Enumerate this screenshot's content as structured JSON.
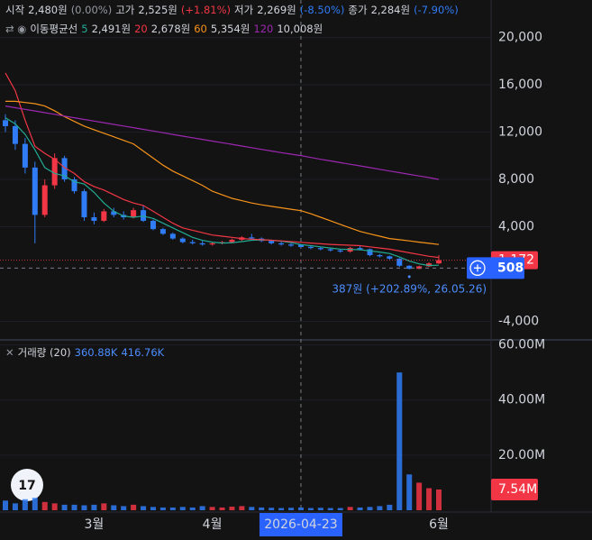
{
  "chart_data": [
    {
      "type": "candlestick",
      "categories": [
        null,
        null,
        null,
        null,
        null,
        null,
        null,
        null,
        null,
        "3월",
        null,
        null,
        null,
        null,
        null,
        null,
        null,
        null,
        null,
        null,
        null,
        "4월",
        null,
        null,
        null,
        null,
        null,
        null,
        null,
        null,
        "2026-04-23",
        null,
        null,
        null,
        null,
        null,
        null,
        null,
        null,
        null,
        null,
        null,
        null,
        null,
        "6월"
      ],
      "open": [
        13000,
        12500,
        11000,
        9000,
        5000,
        7500,
        9800,
        8000,
        7000,
        4800,
        4500,
        5300,
        5000,
        4800,
        5400,
        4500,
        3800,
        3400,
        3000,
        2700,
        2600,
        2500,
        2600,
        2700,
        2900,
        3100,
        3000,
        2800,
        2600,
        2500,
        2480,
        2300,
        2200,
        2100,
        2000,
        1900,
        2200,
        2100,
        1600,
        1500,
        1300,
        700,
        450,
        650,
        900
      ],
      "high": [
        13500,
        13000,
        11500,
        9500,
        8000,
        10200,
        10000,
        8200,
        7200,
        5200,
        5500,
        5600,
        5300,
        5600,
        5800,
        4600,
        3900,
        3500,
        3100,
        2900,
        2800,
        2700,
        2800,
        3000,
        3200,
        3400,
        3100,
        2900,
        2800,
        2700,
        2525,
        2400,
        2300,
        2200,
        2100,
        2300,
        2400,
        2150,
        1700,
        1550,
        1350,
        750,
        700,
        1000,
        1600
      ],
      "low": [
        12000,
        10500,
        8500,
        2600,
        4800,
        7200,
        7800,
        6800,
        4500,
        4200,
        4400,
        4800,
        4600,
        4700,
        4400,
        3700,
        3300,
        2900,
        2600,
        2500,
        2400,
        2400,
        2500,
        2600,
        2800,
        2900,
        2700,
        2500,
        2400,
        2300,
        2269,
        2100,
        2000,
        1900,
        1800,
        1800,
        2000,
        1500,
        1400,
        1200,
        600,
        387,
        400,
        600,
        850
      ],
      "close": [
        12500,
        11000,
        9000,
        5000,
        7500,
        9800,
        8000,
        7000,
        4800,
        4500,
        5300,
        5000,
        4800,
        5400,
        4500,
        3800,
        3400,
        3000,
        2700,
        2600,
        2500,
        2600,
        2700,
        2900,
        3100,
        3000,
        2800,
        2600,
        2500,
        2400,
        2284,
        2200,
        2100,
        2000,
        1900,
        2200,
        2100,
        1600,
        1500,
        1300,
        700,
        450,
        650,
        900,
        1172
      ],
      "up_color": "#f23645",
      "down_color": "#2f7cf6",
      "series": [
        {
          "name": "5",
          "color": "#22ab94",
          "legend_value": "2,491원",
          "values": [
            13200,
            12700,
            11800,
            10500,
            9000,
            8500,
            8300,
            7800,
            7600,
            6900,
            6000,
            5300,
            4900,
            4800,
            4900,
            4700,
            4300,
            3900,
            3500,
            3100,
            2850,
            2700,
            2620,
            2640,
            2740,
            2860,
            2880,
            2860,
            2780,
            2660,
            2491,
            2400,
            2300,
            2200,
            2100,
            2080,
            2060,
            1960,
            1860,
            1740,
            1440,
            1100,
            860,
            720,
            750
          ]
        },
        {
          "name": "20",
          "color": "#f23645",
          "legend_value": "2,678원",
          "values": [
            17000,
            15500,
            13000,
            10800,
            10200,
            9700,
            9000,
            8500,
            7800,
            7400,
            7100,
            6700,
            6300,
            6000,
            5800,
            5300,
            4800,
            4300,
            3900,
            3700,
            3500,
            3300,
            3200,
            3100,
            3000,
            2950,
            2900,
            2860,
            2800,
            2740,
            2678,
            2620,
            2560,
            2510,
            2470,
            2440,
            2400,
            2300,
            2200,
            2100,
            1950,
            1800,
            1650,
            1500,
            1400
          ]
        },
        {
          "name": "60",
          "color": "#f7931a",
          "legend_value": "5,354원",
          "values": [
            14600,
            14600,
            14500,
            14400,
            14200,
            13800,
            13300,
            12900,
            12500,
            12200,
            11900,
            11600,
            11300,
            11000,
            10400,
            9800,
            9200,
            8700,
            8300,
            7900,
            7500,
            7000,
            6700,
            6400,
            6200,
            6000,
            5850,
            5720,
            5600,
            5480,
            5354,
            5100,
            4800,
            4500,
            4200,
            3900,
            3600,
            3400,
            3200,
            3000,
            2900,
            2800,
            2700,
            2600,
            2500
          ]
        },
        {
          "name": "120",
          "color": "#9c27b0",
          "legend_value": "10,008원",
          "values": [
            14200,
            14060,
            13920,
            13780,
            13640,
            13500,
            13350,
            13210,
            13070,
            12930,
            12790,
            12650,
            12510,
            12370,
            12230,
            12090,
            11950,
            11800,
            11660,
            11520,
            11380,
            11240,
            11100,
            10960,
            10820,
            10680,
            10540,
            10400,
            10260,
            10130,
            10008,
            9850,
            9700,
            9560,
            9420,
            9280,
            9140,
            9000,
            8850,
            8710,
            8570,
            8430,
            8290,
            8150,
            8000
          ]
        }
      ],
      "ma_title": "이동평균선",
      "legend": [
        {
          "label": "시작",
          "value": "2,480원",
          "change": "(0.00%)",
          "color": "#9598a1"
        },
        {
          "label": "고가",
          "value": "2,525원",
          "change": "(+1.81%)",
          "color": "#f23645"
        },
        {
          "label": "저가",
          "value": "2,269원",
          "change": "(-8.50%)",
          "color": "#2f7cf6"
        },
        {
          "label": "종가",
          "value": "2,284원",
          "change": "(-7.90%)",
          "color": "#2f7cf6"
        }
      ],
      "ylim": [
        -5410,
        23162
      ],
      "yticks": [
        {
          "value": -4000,
          "label": "-4,000"
        },
        {
          "value": 4000,
          "label": "4,000"
        },
        {
          "value": 8000,
          "label": "8,000"
        },
        {
          "value": 12000,
          "label": "12,000"
        },
        {
          "value": 16000,
          "label": "16,000"
        },
        {
          "value": 20000,
          "label": "20,000"
        }
      ],
      "last_label": "1,172",
      "cursor_label": "508",
      "cursor_value": 508,
      "annotation": "387원 (+202.89%, 26.05.26)"
    },
    {
      "type": "bar",
      "title": "거래량 (20)",
      "legend_values": [
        "360.88K",
        "416.76K"
      ],
      "values": [
        3500000,
        2500000,
        4000000,
        4500000,
        3000000,
        2500000,
        2000000,
        2000000,
        1800000,
        2000000,
        2500000,
        1800000,
        1500000,
        2000000,
        1500000,
        1200000,
        1000000,
        1000000,
        1200000,
        1000000,
        1500000,
        1200000,
        1000000,
        1300000,
        1500000,
        1200000,
        1000000,
        900000,
        800000,
        900000,
        1000000,
        800000,
        900000,
        800000,
        800000,
        1200000,
        1000000,
        1200000,
        1500000,
        2000000,
        50000000,
        13000000,
        10000000,
        8000000,
        7540000
      ],
      "ylim": [
        0,
        61500000
      ],
      "yticks": [
        {
          "value": 20000000,
          "label": "20.00M"
        },
        {
          "value": 40000000,
          "label": "40.00M"
        },
        {
          "value": 60000000,
          "label": "60.00M"
        }
      ],
      "last_label": "7.54M"
    }
  ]
}
